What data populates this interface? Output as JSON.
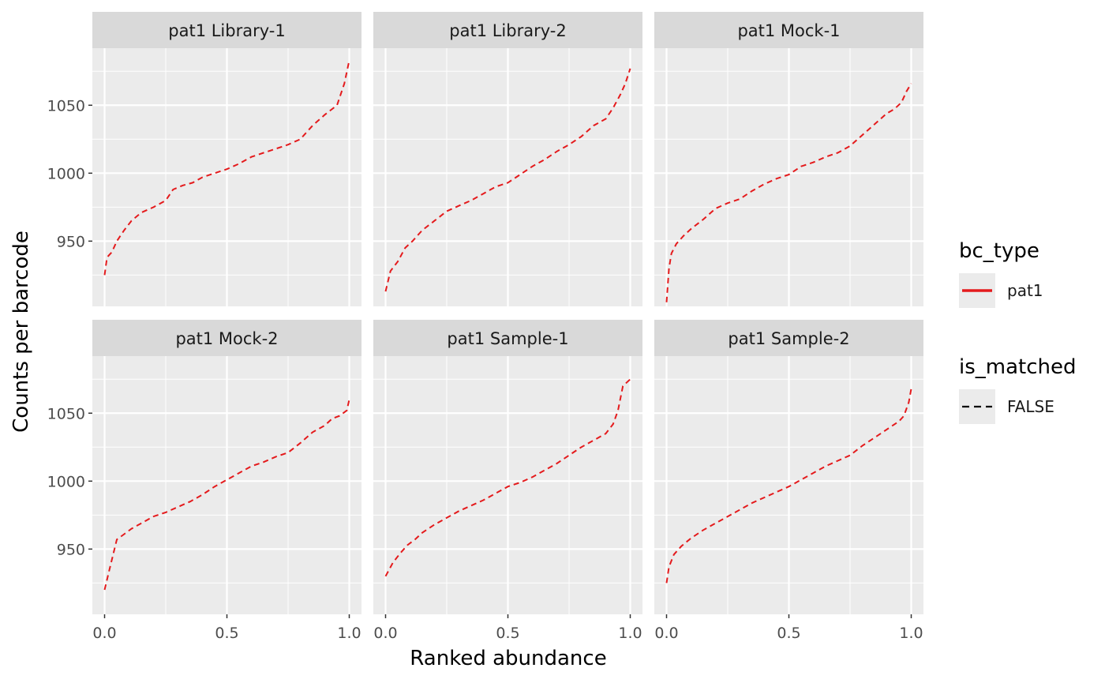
{
  "chart_data": {
    "type": "line",
    "xlabel": "Ranked abundance",
    "ylabel": "Counts per barcode",
    "xlim": [
      -0.05,
      1.05
    ],
    "ylim": [
      902,
      1092
    ],
    "x_ticks": [
      "0.0",
      "0.5",
      "1.0"
    ],
    "x_tick_values": [
      0,
      0.5,
      1
    ],
    "y_ticks": [
      "950",
      "1000",
      "1050"
    ],
    "y_tick_values": [
      950,
      1000,
      1050
    ],
    "grid": true,
    "line_color": "#e41a1c",
    "line_style": "dashed",
    "panels": [
      {
        "title": "pat1 Library-1",
        "x": [
          0,
          0.01,
          0.03,
          0.05,
          0.08,
          0.11,
          0.15,
          0.2,
          0.25,
          0.28,
          0.32,
          0.36,
          0.4,
          0.45,
          0.5,
          0.55,
          0.6,
          0.65,
          0.7,
          0.75,
          0.8,
          0.85,
          0.9,
          0.95,
          0.98,
          1.0
        ],
        "y": [
          925,
          938,
          942,
          950,
          958,
          965,
          971,
          975,
          980,
          988,
          991,
          993,
          997,
          1000,
          1003,
          1007,
          1012,
          1015,
          1018,
          1021,
          1025,
          1035,
          1043,
          1050,
          1066,
          1083
        ]
      },
      {
        "title": "pat1 Library-2",
        "x": [
          0,
          0.02,
          0.05,
          0.08,
          0.11,
          0.15,
          0.2,
          0.25,
          0.3,
          0.35,
          0.4,
          0.45,
          0.5,
          0.55,
          0.6,
          0.65,
          0.7,
          0.75,
          0.8,
          0.85,
          0.9,
          0.93,
          0.96,
          0.98,
          1.0
        ],
        "y": [
          913,
          928,
          935,
          945,
          950,
          958,
          965,
          972,
          976,
          980,
          985,
          990,
          993,
          999,
          1005,
          1010,
          1016,
          1021,
          1027,
          1035,
          1040,
          1048,
          1058,
          1066,
          1077
        ]
      },
      {
        "title": "pat1 Mock-1",
        "x": [
          0,
          0.01,
          0.02,
          0.04,
          0.07,
          0.1,
          0.15,
          0.2,
          0.25,
          0.3,
          0.35,
          0.4,
          0.45,
          0.5,
          0.55,
          0.6,
          0.65,
          0.7,
          0.75,
          0.8,
          0.85,
          0.9,
          0.93,
          0.96,
          0.98,
          1.0
        ],
        "y": [
          905,
          930,
          941,
          948,
          954,
          959,
          966,
          974,
          978,
          981,
          987,
          992,
          996,
          999,
          1005,
          1008,
          1012,
          1015,
          1020,
          1028,
          1036,
          1044,
          1047,
          1052,
          1060,
          1066
        ]
      },
      {
        "title": "pat1 Mock-2",
        "x": [
          0,
          0.02,
          0.05,
          0.08,
          0.11,
          0.15,
          0.2,
          0.25,
          0.3,
          0.35,
          0.4,
          0.45,
          0.5,
          0.55,
          0.6,
          0.65,
          0.7,
          0.75,
          0.8,
          0.85,
          0.9,
          0.93,
          0.96,
          0.99,
          1.0
        ],
        "y": [
          920,
          935,
          957,
          961,
          965,
          969,
          974,
          977,
          981,
          985,
          990,
          996,
          1001,
          1006,
          1011,
          1014,
          1018,
          1021,
          1028,
          1036,
          1041,
          1046,
          1048,
          1052,
          1060
        ]
      },
      {
        "title": "pat1 Sample-1",
        "x": [
          0,
          0.03,
          0.06,
          0.09,
          0.12,
          0.15,
          0.2,
          0.25,
          0.3,
          0.35,
          0.4,
          0.45,
          0.5,
          0.55,
          0.6,
          0.65,
          0.7,
          0.75,
          0.8,
          0.85,
          0.9,
          0.93,
          0.95,
          0.97,
          1.0
        ],
        "y": [
          930,
          940,
          947,
          953,
          957,
          962,
          968,
          973,
          978,
          982,
          986,
          991,
          996,
          999,
          1003,
          1008,
          1013,
          1019,
          1025,
          1030,
          1035,
          1042,
          1052,
          1070,
          1075
        ]
      },
      {
        "title": "pat1 Sample-2",
        "x": [
          0,
          0.01,
          0.03,
          0.06,
          0.1,
          0.15,
          0.2,
          0.25,
          0.3,
          0.35,
          0.4,
          0.45,
          0.5,
          0.55,
          0.6,
          0.65,
          0.7,
          0.75,
          0.8,
          0.85,
          0.9,
          0.95,
          0.97,
          0.99,
          1.0
        ],
        "y": [
          925,
          937,
          946,
          952,
          958,
          964,
          969,
          974,
          979,
          984,
          988,
          992,
          996,
          1001,
          1006,
          1011,
          1015,
          1019,
          1026,
          1032,
          1038,
          1044,
          1048,
          1058,
          1068
        ]
      }
    ],
    "legends": [
      {
        "title": "bc_type",
        "label": "pat1",
        "line": "solid",
        "color": "#e41a1c"
      },
      {
        "title": "is_matched",
        "label": "FALSE",
        "line": "dashed",
        "color": "#000000"
      }
    ]
  }
}
